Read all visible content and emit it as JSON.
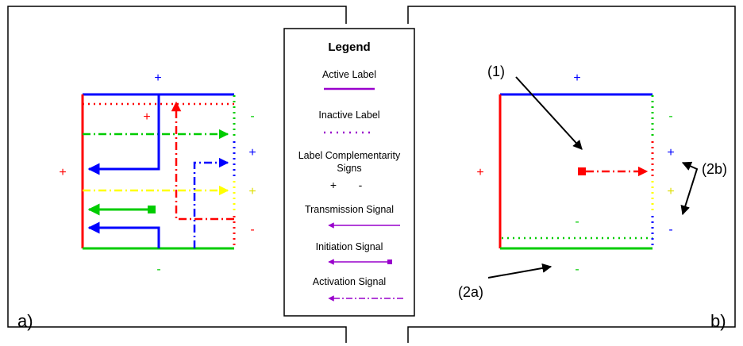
{
  "panels": {
    "left_label": "a)",
    "right_label": "b)"
  },
  "legend": {
    "title": "Legend",
    "active_label": "Active Label",
    "inactive_label": "Inactive Label",
    "complementarity_line1": "Label Complementarity",
    "complementarity_line2": "Signs",
    "plus": "+",
    "minus": "-",
    "transmission": "Transmission Signal",
    "initiation": "Initiation Signal",
    "activation": "Activation Signal"
  },
  "signs": {
    "plus": "+",
    "minus": "-"
  },
  "callouts": {
    "c1": "(1)",
    "c2a": "(2a)",
    "c2b": "(2b)"
  },
  "colors": {
    "red": "#ff0000",
    "blue": "#0000ff",
    "green": "#00cc00",
    "yellow": "#ffff00",
    "purple": "#9900cc",
    "black": "#000000"
  }
}
